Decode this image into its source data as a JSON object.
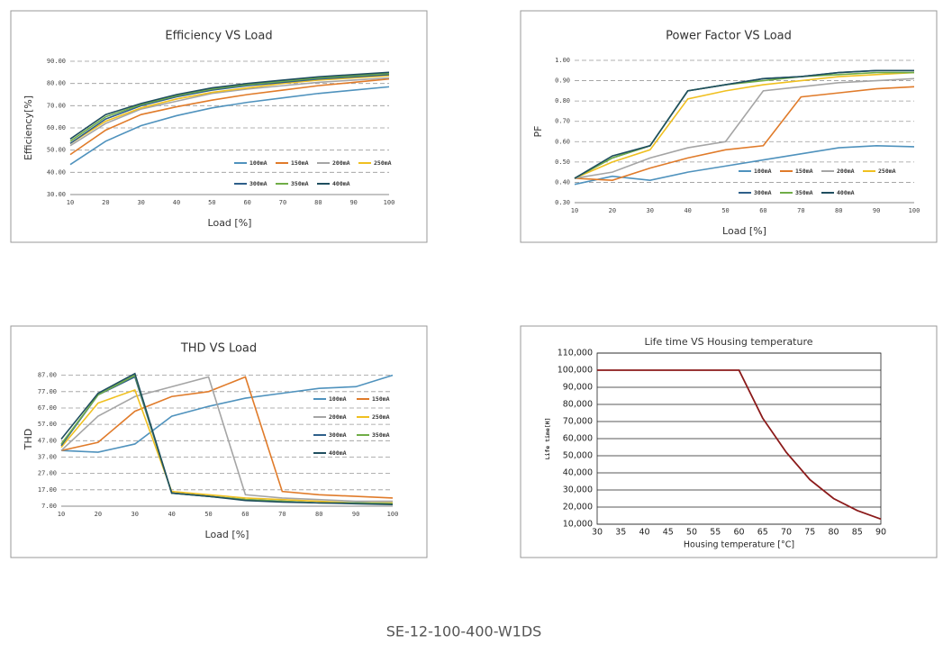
{
  "chart_data": [
    {
      "type": "line",
      "title": "Efficiency VS Load",
      "xlabel": "Load [%]",
      "ylabel": "Efficiency[%]",
      "x": [
        10,
        20,
        30,
        40,
        50,
        60,
        70,
        80,
        90,
        100
      ],
      "xlim": [
        10,
        100
      ],
      "xticks": [
        10,
        20,
        30,
        40,
        50,
        60,
        70,
        80,
        90,
        100
      ],
      "ylim": [
        30,
        90
      ],
      "yticks": [
        {
          "value": 30,
          "label": "30.00"
        },
        {
          "value": 40,
          "label": "40.00"
        },
        {
          "value": 50,
          "label": "50.00"
        },
        {
          "value": 60,
          "label": "60.00"
        },
        {
          "value": 70,
          "label": "70.00"
        },
        {
          "value": 80,
          "label": "80.00"
        },
        {
          "value": 90,
          "label": "90.00"
        }
      ],
      "grid": true,
      "series": [
        {
          "name": "100mA",
          "color": "#4f92bd",
          "values": [
            43.5,
            54,
            61,
            65.5,
            69,
            71.5,
            73.5,
            75.5,
            77,
            78.5
          ]
        },
        {
          "name": "150mA",
          "color": "#e07b2a",
          "values": [
            48,
            59,
            66,
            69.5,
            72.5,
            75,
            77,
            79,
            80.5,
            82
          ]
        },
        {
          "name": "200mA",
          "color": "#a5a5a5",
          "values": [
            52,
            62,
            68.5,
            72,
            75.5,
            77.5,
            79,
            80.5,
            81.5,
            82.5
          ]
        },
        {
          "name": "250mA",
          "color": "#f0c020",
          "values": [
            53,
            63,
            69,
            73,
            76,
            78,
            80,
            81.5,
            82.5,
            83.5
          ]
        },
        {
          "name": "300mA",
          "color": "#2e5f8a",
          "values": [
            53,
            64,
            70,
            74,
            77,
            79,
            80.5,
            82,
            83,
            84
          ]
        },
        {
          "name": "350mA",
          "color": "#70ad47",
          "values": [
            54,
            65,
            70.5,
            74.5,
            77.5,
            79.5,
            81,
            82.5,
            83.5,
            84.5
          ]
        },
        {
          "name": "400mA",
          "color": "#1f4e5f",
          "values": [
            55,
            66,
            71,
            75,
            78,
            80,
            81.5,
            83,
            84,
            85
          ]
        }
      ]
    },
    {
      "type": "line",
      "title": "Power Factor VS Load",
      "xlabel": "Load [%]",
      "ylabel": "PF",
      "x": [
        10,
        20,
        30,
        40,
        50,
        60,
        70,
        80,
        90,
        100
      ],
      "xlim": [
        10,
        100
      ],
      "xticks": [
        10,
        20,
        30,
        40,
        50,
        60,
        70,
        80,
        90,
        100
      ],
      "ylim": [
        0.3,
        1.0
      ],
      "yticks": [
        {
          "value": 0.3,
          "label": "0.30"
        },
        {
          "value": 0.4,
          "label": "0.40"
        },
        {
          "value": 0.5,
          "label": "0.50"
        },
        {
          "value": 0.6,
          "label": "0.60"
        },
        {
          "value": 0.7,
          "label": "0.70"
        },
        {
          "value": 0.8,
          "label": "0.80"
        },
        {
          "value": 0.9,
          "label": "0.90"
        },
        {
          "value": 1.0,
          "label": "1.00"
        }
      ],
      "grid": true,
      "series": [
        {
          "name": "100mA",
          "color": "#4f92bd",
          "values": [
            0.39,
            0.43,
            0.41,
            0.45,
            0.48,
            0.51,
            0.54,
            0.57,
            0.58,
            0.575
          ]
        },
        {
          "name": "150mA",
          "color": "#e07b2a",
          "values": [
            0.42,
            0.41,
            0.47,
            0.52,
            0.56,
            0.58,
            0.82,
            0.84,
            0.86,
            0.87
          ]
        },
        {
          "name": "200mA",
          "color": "#a5a5a5",
          "values": [
            0.42,
            0.45,
            0.52,
            0.57,
            0.6,
            0.85,
            0.87,
            0.89,
            0.9,
            0.91
          ]
        },
        {
          "name": "250mA",
          "color": "#f0c020",
          "values": [
            0.42,
            0.5,
            0.56,
            0.81,
            0.85,
            0.88,
            0.9,
            0.92,
            0.93,
            0.94
          ]
        },
        {
          "name": "300mA",
          "color": "#2e5f8a",
          "values": [
            0.42,
            0.52,
            0.58,
            0.85,
            0.88,
            0.91,
            0.92,
            0.94,
            0.95,
            0.95
          ]
        },
        {
          "name": "350mA",
          "color": "#70ad47",
          "values": [
            0.42,
            0.52,
            0.58,
            0.85,
            0.88,
            0.9,
            0.92,
            0.93,
            0.94,
            0.94
          ]
        },
        {
          "name": "400mA",
          "color": "#1f4e5f",
          "values": [
            0.42,
            0.53,
            0.58,
            0.85,
            0.88,
            0.91,
            0.92,
            0.94,
            0.95,
            0.95
          ]
        }
      ]
    },
    {
      "type": "line",
      "title": "THD VS Load",
      "xlabel": "Load [%]",
      "ylabel": "THD",
      "x": [
        10,
        20,
        30,
        40,
        50,
        60,
        70,
        80,
        90,
        100
      ],
      "xlim": [
        10,
        100
      ],
      "xticks": [
        10,
        20,
        30,
        40,
        50,
        60,
        70,
        80,
        90,
        100
      ],
      "ylim": [
        7,
        89
      ],
      "yticks": [
        {
          "value": 7,
          "label": "7.00"
        },
        {
          "value": 17,
          "label": "17.00"
        },
        {
          "value": 27,
          "label": "27.00"
        },
        {
          "value": 37,
          "label": "37.00"
        },
        {
          "value": 47,
          "label": "47.00"
        },
        {
          "value": 57,
          "label": "57.00"
        },
        {
          "value": 67,
          "label": "67.00"
        },
        {
          "value": 77,
          "label": "77.00"
        },
        {
          "value": 87,
          "label": "87.00"
        }
      ],
      "grid": true,
      "series": [
        {
          "name": "100mA",
          "color": "#4f92bd",
          "values": [
            41,
            40,
            45,
            62,
            68,
            73,
            76,
            79,
            80,
            87
          ]
        },
        {
          "name": "150mA",
          "color": "#e07b2a",
          "values": [
            41,
            46,
            65,
            74,
            77,
            86,
            16,
            14,
            13,
            12
          ]
        },
        {
          "name": "200mA",
          "color": "#a5a5a5",
          "values": [
            41,
            62,
            74,
            80,
            86,
            14,
            12,
            11,
            10,
            10
          ]
        },
        {
          "name": "250mA",
          "color": "#f0c020",
          "values": [
            43,
            70,
            78,
            16,
            14,
            12,
            11,
            10,
            9,
            9
          ]
        },
        {
          "name": "300mA",
          "color": "#2e5f8a",
          "values": [
            44,
            75,
            86,
            15,
            13,
            11,
            10,
            9,
            9,
            8.5
          ]
        },
        {
          "name": "350mA",
          "color": "#70ad47",
          "values": [
            45,
            75,
            87,
            15,
            13,
            11,
            10,
            9,
            9,
            8.5
          ]
        },
        {
          "name": "400mA",
          "color": "#1f4e5f",
          "values": [
            48,
            76,
            88,
            15,
            13,
            10.5,
            9.5,
            9,
            8.5,
            8
          ]
        }
      ]
    },
    {
      "type": "line",
      "title": "Life time VS Housing temperature",
      "xlabel": "Housing temperature [°C]",
      "ylabel": "Life time[H]",
      "x": [
        30,
        35,
        40,
        45,
        50,
        55,
        60,
        65,
        70,
        75,
        80,
        85,
        90
      ],
      "xlim": [
        30,
        90
      ],
      "xticks": [
        30,
        35,
        40,
        45,
        50,
        55,
        60,
        65,
        70,
        75,
        80,
        85,
        90
      ],
      "ylim": [
        10000,
        110000
      ],
      "yticks": [
        {
          "value": 10000,
          "label": "10,000"
        },
        {
          "value": 20000,
          "label": "20,000"
        },
        {
          "value": 30000,
          "label": "30,000"
        },
        {
          "value": 40000,
          "label": "40,000"
        },
        {
          "value": 50000,
          "label": "50,000"
        },
        {
          "value": 60000,
          "label": "60,000"
        },
        {
          "value": 70000,
          "label": "70,000"
        },
        {
          "value": 80000,
          "label": "80,000"
        },
        {
          "value": 90000,
          "label": "90,000"
        },
        {
          "value": 100000,
          "label": "100,000"
        },
        {
          "value": 110000,
          "label": "110,000"
        }
      ],
      "grid": true,
      "color": "#8b1a1a",
      "values": [
        100000,
        100000,
        100000,
        100000,
        100000,
        100000,
        100000,
        72000,
        52000,
        36000,
        25000,
        18000,
        13000
      ]
    }
  ],
  "caption": "SE-12-100-400-W1DS"
}
